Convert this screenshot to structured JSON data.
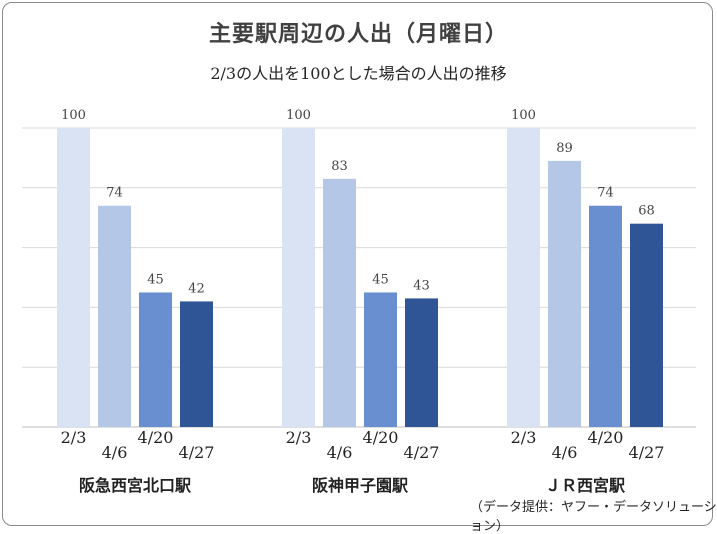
{
  "chart_data": {
    "type": "bar",
    "title": "主要駅周辺の人出（月曜日）",
    "subtitle": "2/3の人出を100とした場合の人出の推移",
    "source": "（データ提供：ヤフー・データソリューション）",
    "ylim": [
      0,
      100
    ],
    "grid": true,
    "groups": [
      {
        "name": "阪急西宮北口駅",
        "categories": [
          "2/3",
          "4/6",
          "4/20",
          "4/27"
        ],
        "values": [
          100,
          74,
          45,
          42
        ]
      },
      {
        "name": "阪神甲子園駅",
        "categories": [
          "2/3",
          "4/6",
          "4/20",
          "4/27"
        ],
        "values": [
          100,
          83,
          45,
          43
        ]
      },
      {
        "name": "ＪＲ西宮駅",
        "categories": [
          "2/3",
          "4/6",
          "4/20",
          "4/27"
        ],
        "values": [
          100,
          89,
          74,
          68
        ]
      }
    ],
    "colors": [
      "#dae3f3",
      "#b4c7e7",
      "#6a8fd0",
      "#2f5597"
    ]
  }
}
